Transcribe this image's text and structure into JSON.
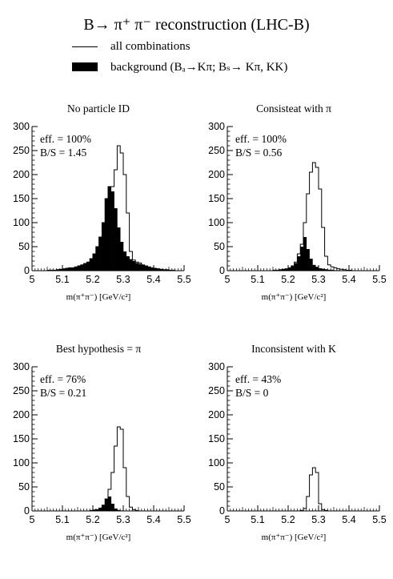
{
  "title": "B→ π⁺ π⁻ reconstruction (LHC-B)",
  "legend": [
    {
      "label": "all combinations",
      "style": "line"
    },
    {
      "label": "background (Bₐ→Kπ; Bₛ→ Kπ, KK)",
      "style": "filled"
    }
  ],
  "chart_data": [
    {
      "type": "histogram",
      "title": "No particle ID",
      "xlabel": "m(π⁺π⁻) [GeV/c²]",
      "ylabel": "",
      "xlim": [
        5,
        5.5
      ],
      "ylim": [
        0,
        300
      ],
      "x_ticks": [
        "5",
        "5.1",
        "5.2",
        "5.3",
        "5.4",
        "5.5"
      ],
      "y_ticks": [
        "0",
        "50",
        "100",
        "150",
        "200",
        "250",
        "300"
      ],
      "annotations": [
        "eff. = 100%",
        "B/S = 1.45"
      ],
      "bin_width": 0.01,
      "bin_start": 5.0,
      "series": [
        {
          "name": "all combinations",
          "style": "outline",
          "values": [
            0,
            0,
            0,
            0,
            0,
            1,
            1,
            1,
            2,
            3,
            4,
            5,
            6,
            6,
            8,
            10,
            12,
            15,
            18,
            25,
            35,
            50,
            70,
            100,
            150,
            175,
            175,
            210,
            260,
            245,
            200,
            120,
            40,
            22,
            18,
            16,
            12,
            10,
            8,
            6,
            5,
            4,
            3,
            2,
            2,
            1,
            1,
            0,
            0,
            0
          ]
        },
        {
          "name": "background",
          "style": "filled",
          "values": [
            0,
            0,
            0,
            0,
            0,
            1,
            1,
            1,
            2,
            3,
            4,
            5,
            6,
            6,
            8,
            10,
            12,
            15,
            18,
            25,
            35,
            50,
            70,
            100,
            150,
            175,
            165,
            130,
            90,
            60,
            40,
            30,
            24,
            20,
            16,
            14,
            12,
            10,
            8,
            6,
            5,
            4,
            3,
            2,
            2,
            1,
            1,
            0,
            0,
            0
          ]
        }
      ]
    },
    {
      "type": "histogram",
      "title": "Consisteat with π",
      "xlabel": "m(π⁺π⁻) [GeV/c²]",
      "ylabel": "",
      "xlim": [
        5,
        5.5
      ],
      "ylim": [
        0,
        300
      ],
      "x_ticks": [
        "5",
        "5.1",
        "5.2",
        "5.3",
        "5.4",
        "5.5"
      ],
      "y_ticks": [
        "0",
        "50",
        "100",
        "150",
        "200",
        "250",
        "300"
      ],
      "annotations": [
        "eff. = 100%",
        "B/S = 0.56"
      ],
      "bin_width": 0.01,
      "bin_start": 5.0,
      "series": [
        {
          "name": "all combinations",
          "style": "outline",
          "values": [
            0,
            0,
            0,
            0,
            0,
            0,
            0,
            0,
            0,
            0,
            0,
            0,
            0,
            0,
            0,
            1,
            1,
            2,
            3,
            4,
            6,
            10,
            18,
            35,
            55,
            100,
            160,
            205,
            225,
            215,
            170,
            90,
            30,
            12,
            8,
            6,
            4,
            3,
            2,
            1,
            1,
            0,
            0,
            0,
            0,
            0,
            0,
            0,
            0,
            0
          ]
        },
        {
          "name": "background",
          "style": "filled",
          "values": [
            0,
            0,
            0,
            0,
            0,
            0,
            0,
            0,
            0,
            0,
            0,
            0,
            0,
            0,
            0,
            1,
            1,
            2,
            3,
            4,
            6,
            10,
            16,
            30,
            50,
            70,
            45,
            25,
            12,
            8,
            5,
            4,
            3,
            2,
            2,
            1,
            1,
            0,
            0,
            0,
            0,
            0,
            0,
            0,
            0,
            0,
            0,
            0,
            0,
            0
          ]
        }
      ]
    },
    {
      "type": "histogram",
      "title": "Best hypothesis = π",
      "xlabel": "m(π⁺π⁻) [GeV/c²]",
      "ylabel": "",
      "xlim": [
        5,
        5.5
      ],
      "ylim": [
        0,
        300
      ],
      "x_ticks": [
        "5",
        "5.1",
        "5.2",
        "5.3",
        "5.4",
        "5.5"
      ],
      "y_ticks": [
        "0",
        "50",
        "100",
        "150",
        "200",
        "250",
        "300"
      ],
      "annotations": [
        "eff. = 76%",
        "B/S = 0.21"
      ],
      "bin_width": 0.01,
      "bin_start": 5.0,
      "series": [
        {
          "name": "all combinations",
          "style": "outline",
          "values": [
            0,
            0,
            0,
            0,
            0,
            0,
            0,
            0,
            0,
            0,
            0,
            0,
            0,
            0,
            0,
            0,
            0,
            0,
            0,
            1,
            2,
            3,
            6,
            12,
            25,
            45,
            80,
            135,
            175,
            170,
            90,
            30,
            8,
            3,
            1,
            0,
            0,
            0,
            0,
            0,
            0,
            0,
            0,
            0,
            0,
            0,
            0,
            0,
            0,
            0
          ]
        },
        {
          "name": "background",
          "style": "filled",
          "values": [
            0,
            0,
            0,
            0,
            0,
            0,
            0,
            0,
            0,
            0,
            0,
            0,
            0,
            0,
            0,
            0,
            0,
            0,
            0,
            1,
            2,
            3,
            6,
            12,
            25,
            30,
            15,
            5,
            2,
            1,
            0,
            0,
            0,
            0,
            0,
            0,
            0,
            0,
            0,
            0,
            0,
            0,
            0,
            0,
            0,
            0,
            0,
            0,
            0,
            0
          ]
        }
      ]
    },
    {
      "type": "histogram",
      "title": "Inconsistent with K",
      "xlabel": "m(π⁺π⁻) [GeV/c²]",
      "ylabel": "",
      "xlim": [
        5,
        5.5
      ],
      "ylim": [
        0,
        300
      ],
      "x_ticks": [
        "5",
        "5.1",
        "5.2",
        "5.3",
        "5.4",
        "5.5"
      ],
      "y_ticks": [
        "0",
        "50",
        "100",
        "150",
        "200",
        "250",
        "300"
      ],
      "annotations": [
        "eff. = 43%",
        "B/S = 0"
      ],
      "bin_width": 0.01,
      "bin_start": 5.0,
      "series": [
        {
          "name": "all combinations",
          "style": "outline",
          "values": [
            0,
            0,
            0,
            0,
            0,
            0,
            0,
            0,
            0,
            0,
            0,
            0,
            0,
            0,
            0,
            0,
            0,
            0,
            0,
            0,
            0,
            0,
            0,
            0,
            1,
            5,
            30,
            75,
            90,
            80,
            15,
            3,
            1,
            0,
            0,
            0,
            0,
            0,
            0,
            0,
            0,
            0,
            0,
            0,
            0,
            0,
            0,
            0,
            0,
            0
          ]
        },
        {
          "name": "background",
          "style": "filled",
          "values": [
            0,
            0,
            0,
            0,
            0,
            0,
            0,
            0,
            0,
            0,
            0,
            0,
            0,
            0,
            0,
            0,
            0,
            0,
            0,
            0,
            0,
            0,
            0,
            0,
            0,
            0,
            0,
            0,
            0,
            0,
            0,
            0,
            0,
            0,
            0,
            0,
            0,
            0,
            0,
            0,
            0,
            0,
            0,
            0,
            0,
            0,
            0,
            0,
            0,
            0
          ]
        }
      ]
    }
  ]
}
